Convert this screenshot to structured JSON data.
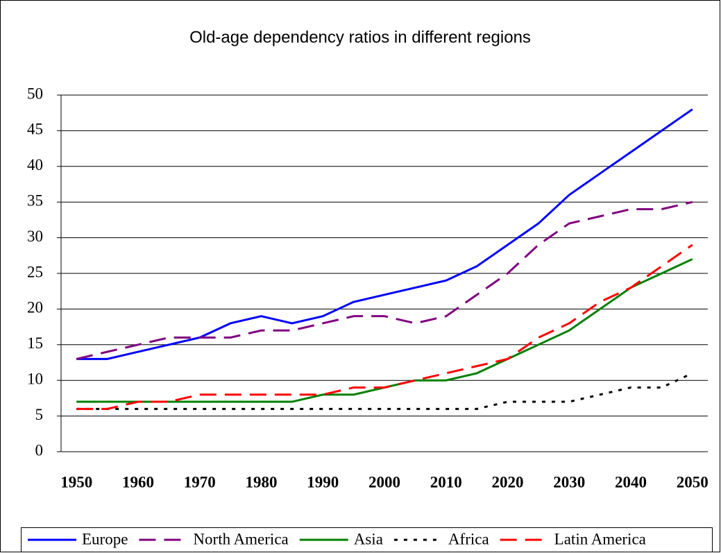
{
  "chart_data": {
    "type": "line",
    "title": "Old-age dependency ratios in different regions",
    "categories": [
      "1950",
      null,
      "1960",
      null,
      "1970",
      null,
      "1980",
      null,
      "1990",
      null,
      "2000",
      null,
      "2010",
      null,
      "2020",
      null,
      "2030",
      null,
      "2040",
      null,
      "2050"
    ],
    "series": [
      {
        "name": "Europe",
        "color": "#0000ff",
        "dash": "solid",
        "values": [
          13,
          13,
          14,
          15,
          16,
          18,
          19,
          18,
          19,
          21,
          22,
          23,
          24,
          26,
          29,
          32,
          36,
          39,
          42,
          45,
          48
        ]
      },
      {
        "name": "North America",
        "color": "#800080",
        "dash": "dashed",
        "values": [
          13,
          14,
          15,
          16,
          16,
          16,
          17,
          17,
          18,
          19,
          19,
          18,
          19,
          22,
          25,
          29,
          32,
          33,
          34,
          34,
          35
        ]
      },
      {
        "name": "Asia",
        "color": "#008000",
        "dash": "solid",
        "values": [
          7,
          7,
          7,
          7,
          7,
          7,
          7,
          7,
          8,
          8,
          9,
          10,
          10,
          11,
          13,
          15,
          17,
          20,
          23,
          25,
          27
        ]
      },
      {
        "name": "Africa",
        "color": "#000000",
        "dash": "dotted",
        "values": [
          6,
          6,
          6,
          6,
          6,
          6,
          6,
          6,
          6,
          6,
          6,
          6,
          6,
          6,
          7,
          7,
          7,
          8,
          9,
          9,
          11
        ]
      },
      {
        "name": "Latin America",
        "color": "#ff0000",
        "dash": "dashed",
        "values": [
          6,
          6,
          7,
          7,
          8,
          8,
          8,
          8,
          8,
          9,
          9,
          10,
          11,
          12,
          13,
          16,
          18,
          21,
          23,
          26,
          29
        ]
      }
    ],
    "ylim": [
      0,
      50
    ],
    "yticks": [
      0,
      5,
      10,
      15,
      20,
      25,
      30,
      35,
      40,
      45,
      50
    ],
    "grid": true,
    "legend": "bottom"
  }
}
